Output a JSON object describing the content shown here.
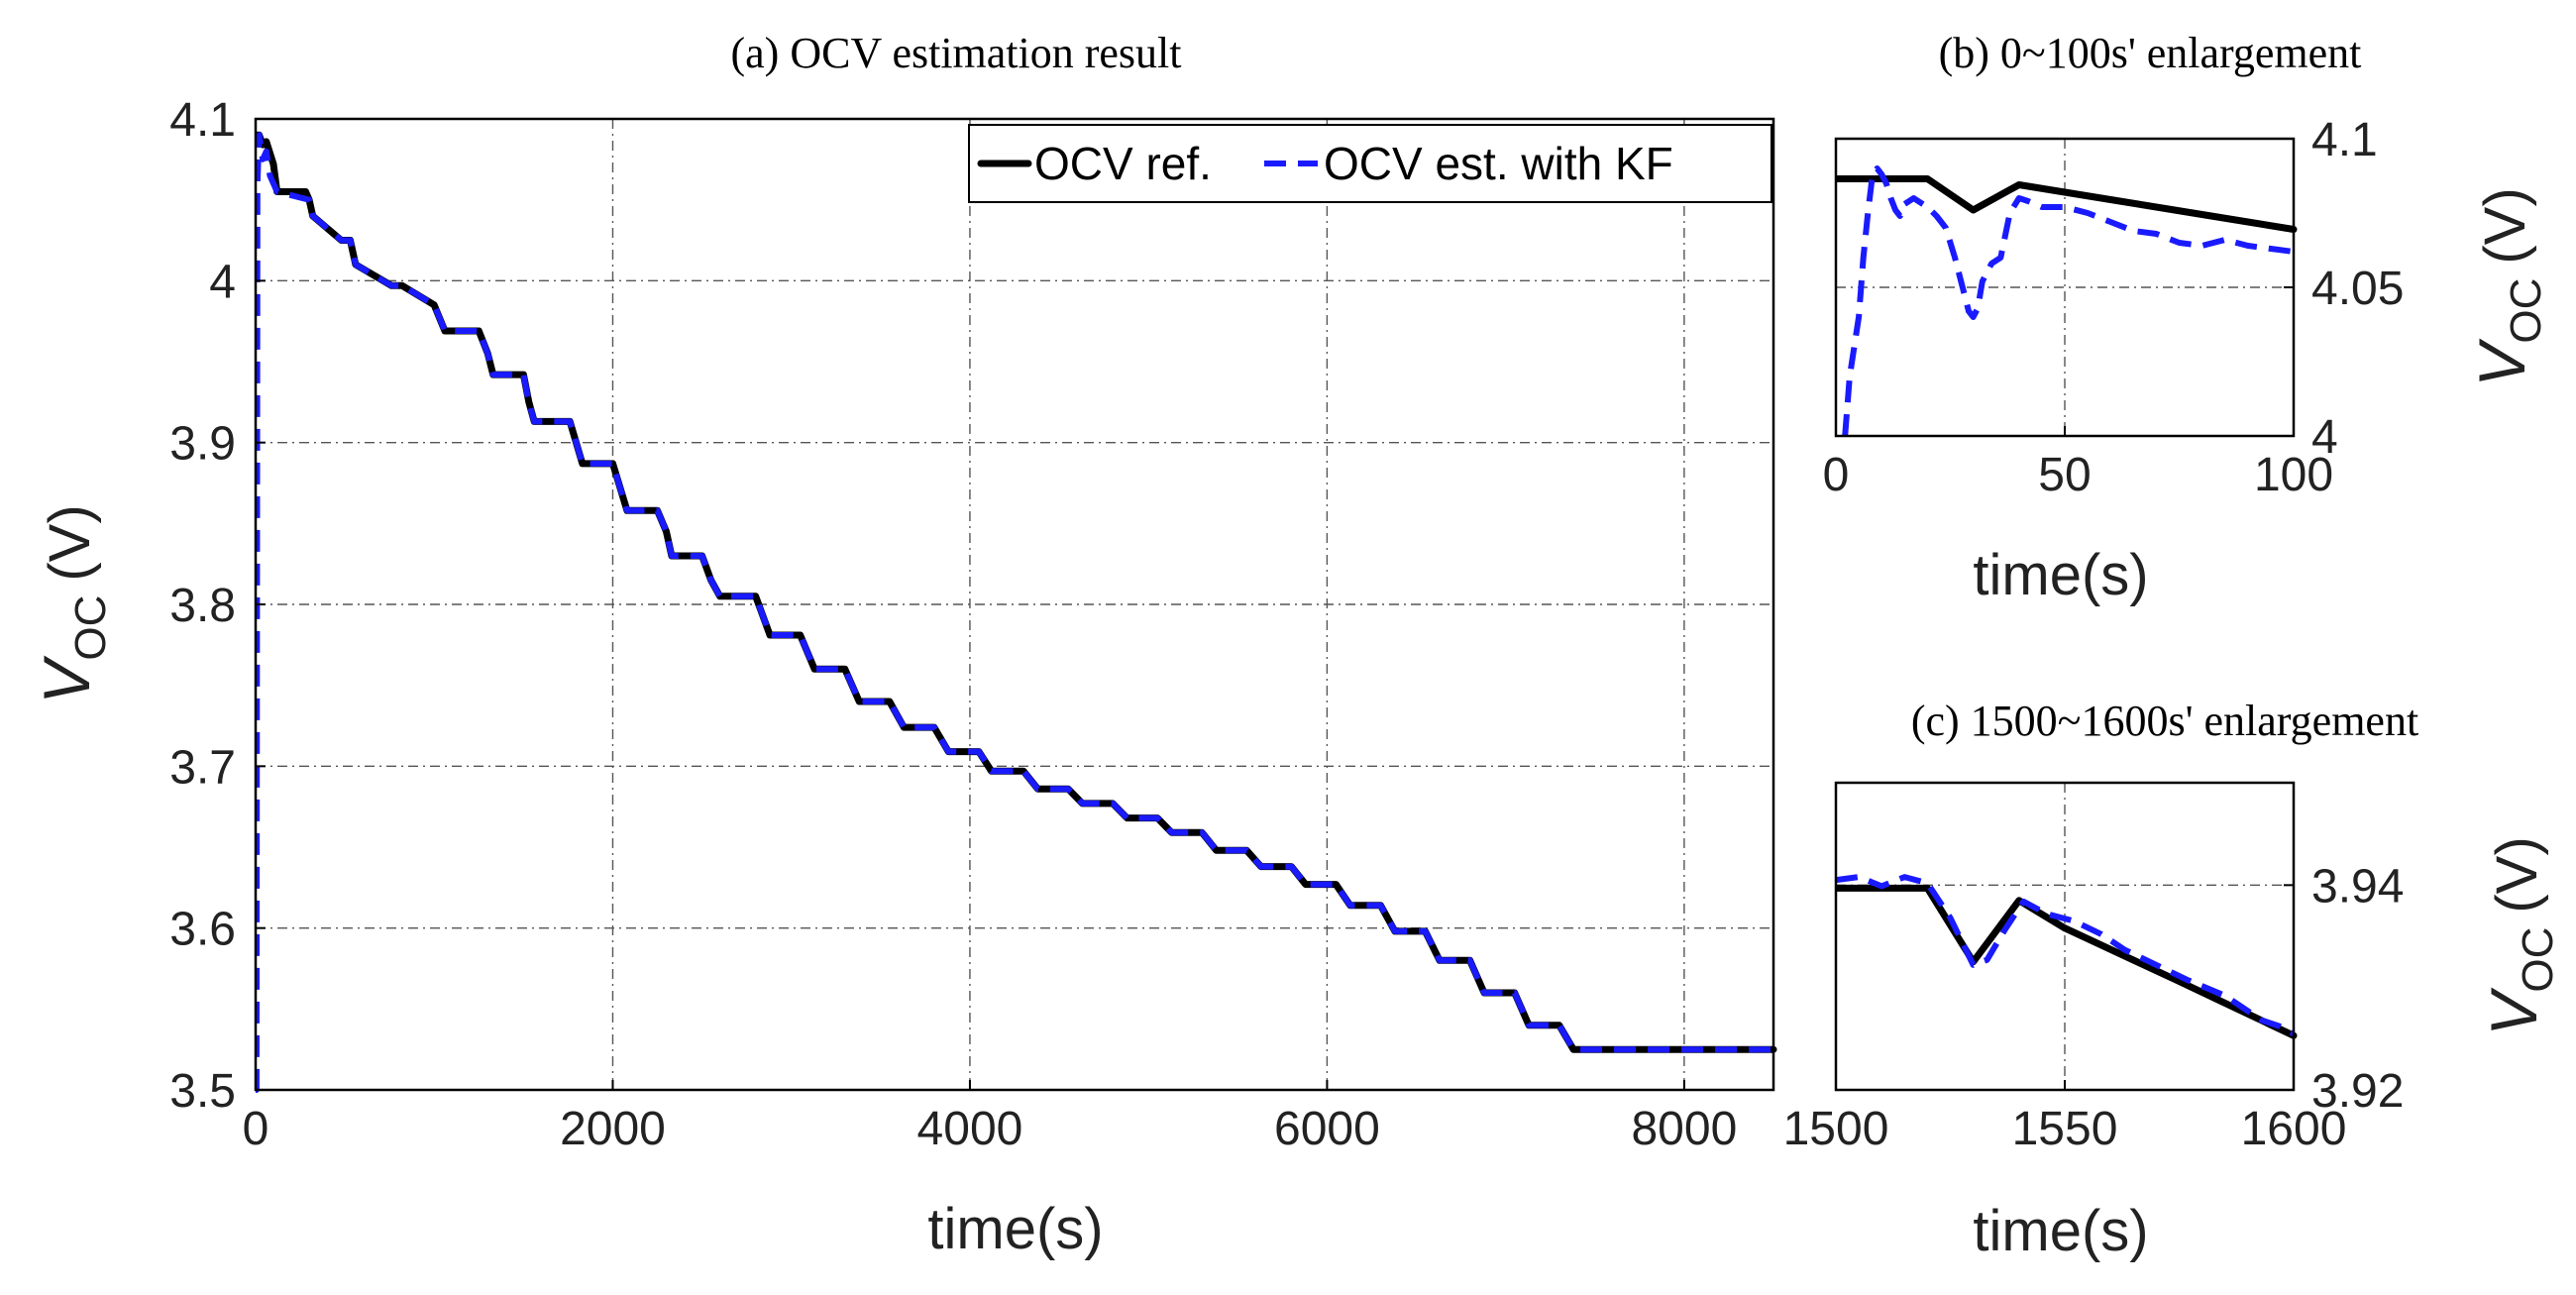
{
  "figure_name": "OCV estimation figure",
  "colors": {
    "reference": "#000000",
    "estimate": "#1a1aff",
    "grid": "#555555"
  },
  "chart_data": [
    {
      "id": "a",
      "type": "line",
      "title": "(a) OCV estimation result",
      "xlabel": "time(s)",
      "ylabel_main": "V",
      "ylabel_sub": "OC",
      "ylabel_unit": "(V)",
      "xlim": [
        0,
        8500
      ],
      "ylim": [
        3.5,
        4.1
      ],
      "xticks": [
        0,
        2000,
        4000,
        6000,
        8000
      ],
      "xtick_labels": [
        "0",
        "2000",
        "4000",
        "6000",
        "8000"
      ],
      "yticks": [
        3.5,
        3.6,
        3.7,
        3.8,
        3.9,
        4.0,
        4.1
      ],
      "ytick_labels": [
        "3.5",
        "3.6",
        "3.7",
        "3.8",
        "3.9",
        "4",
        "4.1"
      ],
      "legend": [
        "OCV ref.",
        "OCV est. with KF"
      ],
      "legend_position": "top-right",
      "series": [
        {
          "name": "OCV ref.",
          "style": "solid",
          "x": [
            0,
            20,
            40,
            60,
            100,
            120,
            280,
            300,
            320,
            480,
            530,
            560,
            760,
            820,
            1000,
            1060,
            1250,
            1300,
            1330,
            1500,
            1530,
            1560,
            1760,
            1830,
            2000,
            2080,
            2250,
            2300,
            2330,
            2500,
            2550,
            2600,
            2800,
            2880,
            3050,
            3130,
            3300,
            3380,
            3550,
            3630,
            3800,
            3880,
            4050,
            4120,
            4300,
            4380,
            4550,
            4630,
            4800,
            4880,
            5050,
            5130,
            5300,
            5380,
            5550,
            5630,
            5800,
            5880,
            6050,
            6130,
            6300,
            6380,
            6550,
            6630,
            6800,
            6880,
            7050,
            7130,
            7300,
            7380,
            7550,
            7630,
            7800,
            7880,
            8050,
            8130,
            8300,
            8380,
            8500
          ],
          "y": [
            4.09,
            4.09,
            4.084,
            4.086,
            4.072,
            4.055,
            4.055,
            4.05,
            4.04,
            4.025,
            4.025,
            4.01,
            3.997,
            3.997,
            3.985,
            3.969,
            3.969,
            3.955,
            3.942,
            3.942,
            3.925,
            3.913,
            3.913,
            3.887,
            3.887,
            3.858,
            3.858,
            3.845,
            3.83,
            3.83,
            3.815,
            3.805,
            3.805,
            3.781,
            3.781,
            3.76,
            3.76,
            3.74,
            3.74,
            3.724,
            3.724,
            3.709,
            3.709,
            3.697,
            3.697,
            3.686,
            3.686,
            3.677,
            3.677,
            3.668,
            3.668,
            3.659,
            3.659,
            3.648,
            3.648,
            3.638,
            3.638,
            3.627,
            3.627,
            3.614,
            3.614,
            3.598,
            3.598,
            3.58,
            3.58,
            3.56,
            3.56,
            3.54,
            3.54,
            3.525,
            3.525,
            3.525,
            3.525,
            3.525,
            3.525,
            3.525,
            3.525,
            3.525,
            3.525
          ]
        },
        {
          "name": "OCV est. with KF",
          "style": "dashed",
          "x": [
            0,
            5,
            10,
            20,
            40,
            60,
            80,
            120,
            300,
            320,
            480,
            530,
            560,
            760,
            820,
            1000,
            1060,
            1250,
            1300,
            1330,
            1500,
            1530,
            1560,
            1760,
            1830,
            2000,
            2080,
            2250,
            2300,
            2330,
            2500,
            2550,
            2600,
            2800,
            2880,
            3050,
            3130,
            3300,
            3380,
            3550,
            3630,
            3800,
            3880,
            4050,
            4120,
            4300,
            4380,
            4550,
            4630,
            4800,
            4880,
            5050,
            5130,
            5300,
            5380,
            5550,
            5630,
            5800,
            5880,
            6050,
            6130,
            6300,
            6380,
            6550,
            6630,
            6800,
            6880,
            7050,
            7130,
            7300,
            7380,
            7550,
            7630,
            7800,
            7880,
            8050,
            8130,
            8300,
            8380,
            8500
          ],
          "y": [
            3.5,
            3.5,
            4.06,
            4.09,
            4.075,
            4.08,
            4.065,
            4.055,
            4.05,
            4.04,
            4.025,
            4.025,
            4.01,
            3.997,
            3.997,
            3.985,
            3.969,
            3.969,
            3.955,
            3.942,
            3.942,
            3.925,
            3.913,
            3.913,
            3.887,
            3.887,
            3.858,
            3.858,
            3.845,
            3.83,
            3.83,
            3.815,
            3.805,
            3.805,
            3.781,
            3.781,
            3.76,
            3.76,
            3.74,
            3.74,
            3.724,
            3.724,
            3.709,
            3.709,
            3.697,
            3.697,
            3.686,
            3.686,
            3.677,
            3.677,
            3.668,
            3.668,
            3.659,
            3.659,
            3.648,
            3.648,
            3.638,
            3.638,
            3.627,
            3.627,
            3.614,
            3.614,
            3.598,
            3.598,
            3.58,
            3.58,
            3.56,
            3.56,
            3.54,
            3.54,
            3.525,
            3.525,
            3.525,
            3.525,
            3.525,
            3.525,
            3.525,
            3.525,
            3.525,
            3.525
          ]
        }
      ]
    },
    {
      "id": "b",
      "type": "line",
      "title": "(b) 0~100s' enlargement",
      "xlabel": "time(s)",
      "ylabel_main": "V",
      "ylabel_sub": "OC",
      "ylabel_unit": "(V)",
      "xlim": [
        0,
        100
      ],
      "ylim": [
        4.0,
        4.1
      ],
      "xticks": [
        0,
        50,
        100
      ],
      "xtick_labels": [
        "0",
        "50",
        "100"
      ],
      "yticks": [
        4.0,
        4.05,
        4.1
      ],
      "ytick_labels": [
        "4",
        "4.05",
        "4.1"
      ],
      "series": [
        {
          "name": "OCV ref.",
          "style": "solid",
          "x": [
            0,
            20,
            30,
            40,
            60,
            80,
            100
          ],
          "y": [
            4.0865,
            4.0865,
            4.076,
            4.0845,
            4.0795,
            4.0745,
            4.0695
          ]
        },
        {
          "name": "OCV est. with KF",
          "style": "dashed",
          "x": [
            2,
            3,
            4,
            5,
            6,
            7,
            8,
            9,
            10,
            11,
            12,
            13,
            14,
            15,
            17,
            20,
            22,
            24,
            26,
            28,
            29,
            30,
            31,
            32,
            34,
            36,
            38,
            40,
            42,
            45,
            50,
            55,
            60,
            65,
            70,
            75,
            80,
            85,
            90,
            95,
            100
          ],
          "y": [
            4.0,
            4.02,
            4.03,
            4.04,
            4.06,
            4.075,
            4.088,
            4.09,
            4.088,
            4.085,
            4.08,
            4.076,
            4.074,
            4.078,
            4.08,
            4.077,
            4.074,
            4.07,
            4.06,
            4.048,
            4.042,
            4.04,
            4.043,
            4.052,
            4.058,
            4.06,
            4.075,
            4.08,
            4.079,
            4.077,
            4.077,
            4.075,
            4.072,
            4.069,
            4.068,
            4.065,
            4.064,
            4.066,
            4.064,
            4.063,
            4.062
          ]
        }
      ]
    },
    {
      "id": "c",
      "type": "line",
      "title": "(c) 1500~1600s' enlargement",
      "xlabel": "time(s)",
      "ylabel_main": "V",
      "ylabel_sub": "OC",
      "ylabel_unit": "(V)",
      "xlim": [
        1500,
        1600
      ],
      "ylim": [
        3.92,
        3.95
      ],
      "xticks": [
        1500,
        1550,
        1600
      ],
      "xtick_labels": [
        "1500",
        "1550",
        "1600"
      ],
      "yticks": [
        3.92,
        3.94
      ],
      "ytick_labels": [
        "3.92",
        "3.94"
      ],
      "series": [
        {
          "name": "OCV ref.",
          "style": "solid",
          "x": [
            1500,
            1520,
            1530,
            1540,
            1550,
            1575,
            1600
          ],
          "y": [
            3.9397,
            3.9397,
            3.9325,
            3.9385,
            3.9358,
            3.9306,
            3.9253
          ]
        },
        {
          "name": "OCV est. with KF",
          "style": "dashed",
          "x": [
            1500,
            1505,
            1510,
            1515,
            1520,
            1525,
            1530,
            1533,
            1537,
            1541,
            1546,
            1552,
            1558,
            1563,
            1570,
            1577,
            1585,
            1593,
            1597,
            1600
          ],
          "y": [
            3.9405,
            3.9408,
            3.9399,
            3.9408,
            3.9402,
            3.9368,
            3.9322,
            3.9327,
            3.9357,
            3.9384,
            3.9372,
            3.9365,
            3.9352,
            3.9337,
            3.9322,
            3.9307,
            3.9292,
            3.9268,
            3.9262,
            3.9255
          ]
        }
      ]
    }
  ]
}
